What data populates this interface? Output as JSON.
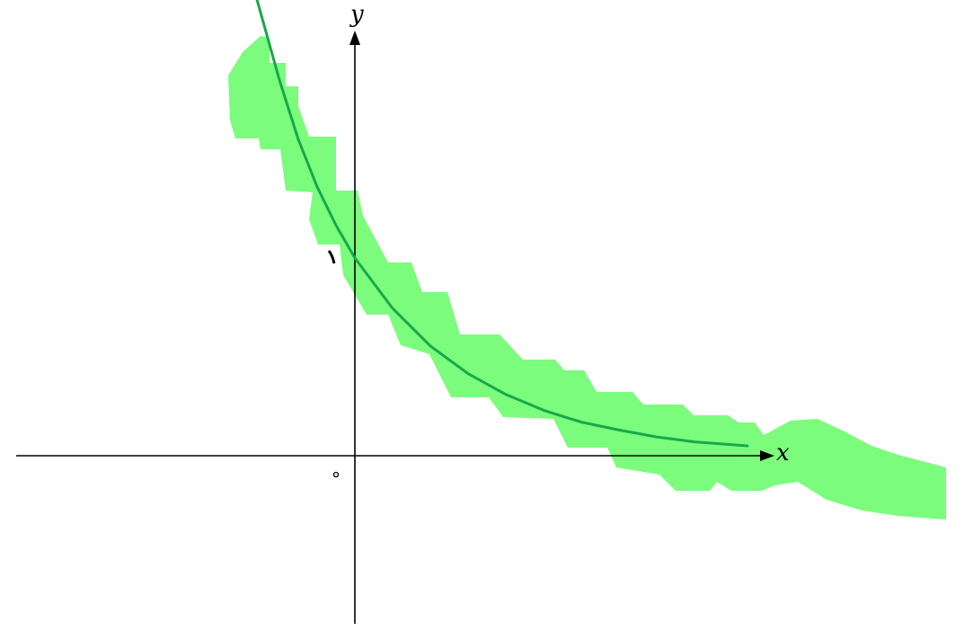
{
  "chart_data": {
    "type": "line",
    "x_axis_label": "x",
    "y_axis_label": "y",
    "origin_label": "o",
    "colors": {
      "curve": "#17a84a",
      "highlight": "#7cfc7c",
      "axes": "#000000"
    },
    "grid": false,
    "xlim": [
      -4.5,
      5.5
    ],
    "ylim": [
      -2.5,
      5
    ],
    "series": [
      {
        "x": [
          -1.3,
          -1.0,
          -0.75,
          -0.5,
          -0.25,
          0,
          0.5,
          1.0,
          1.5,
          2.0,
          2.5,
          3.0,
          3.5,
          4.0,
          4.5,
          5.2
        ],
        "y": [
          4.62,
          3.8,
          3.2,
          2.72,
          2.33,
          2.0,
          1.49,
          1.11,
          0.83,
          0.62,
          0.46,
          0.34,
          0.26,
          0.19,
          0.14,
          0.1
        ]
      }
    ]
  }
}
